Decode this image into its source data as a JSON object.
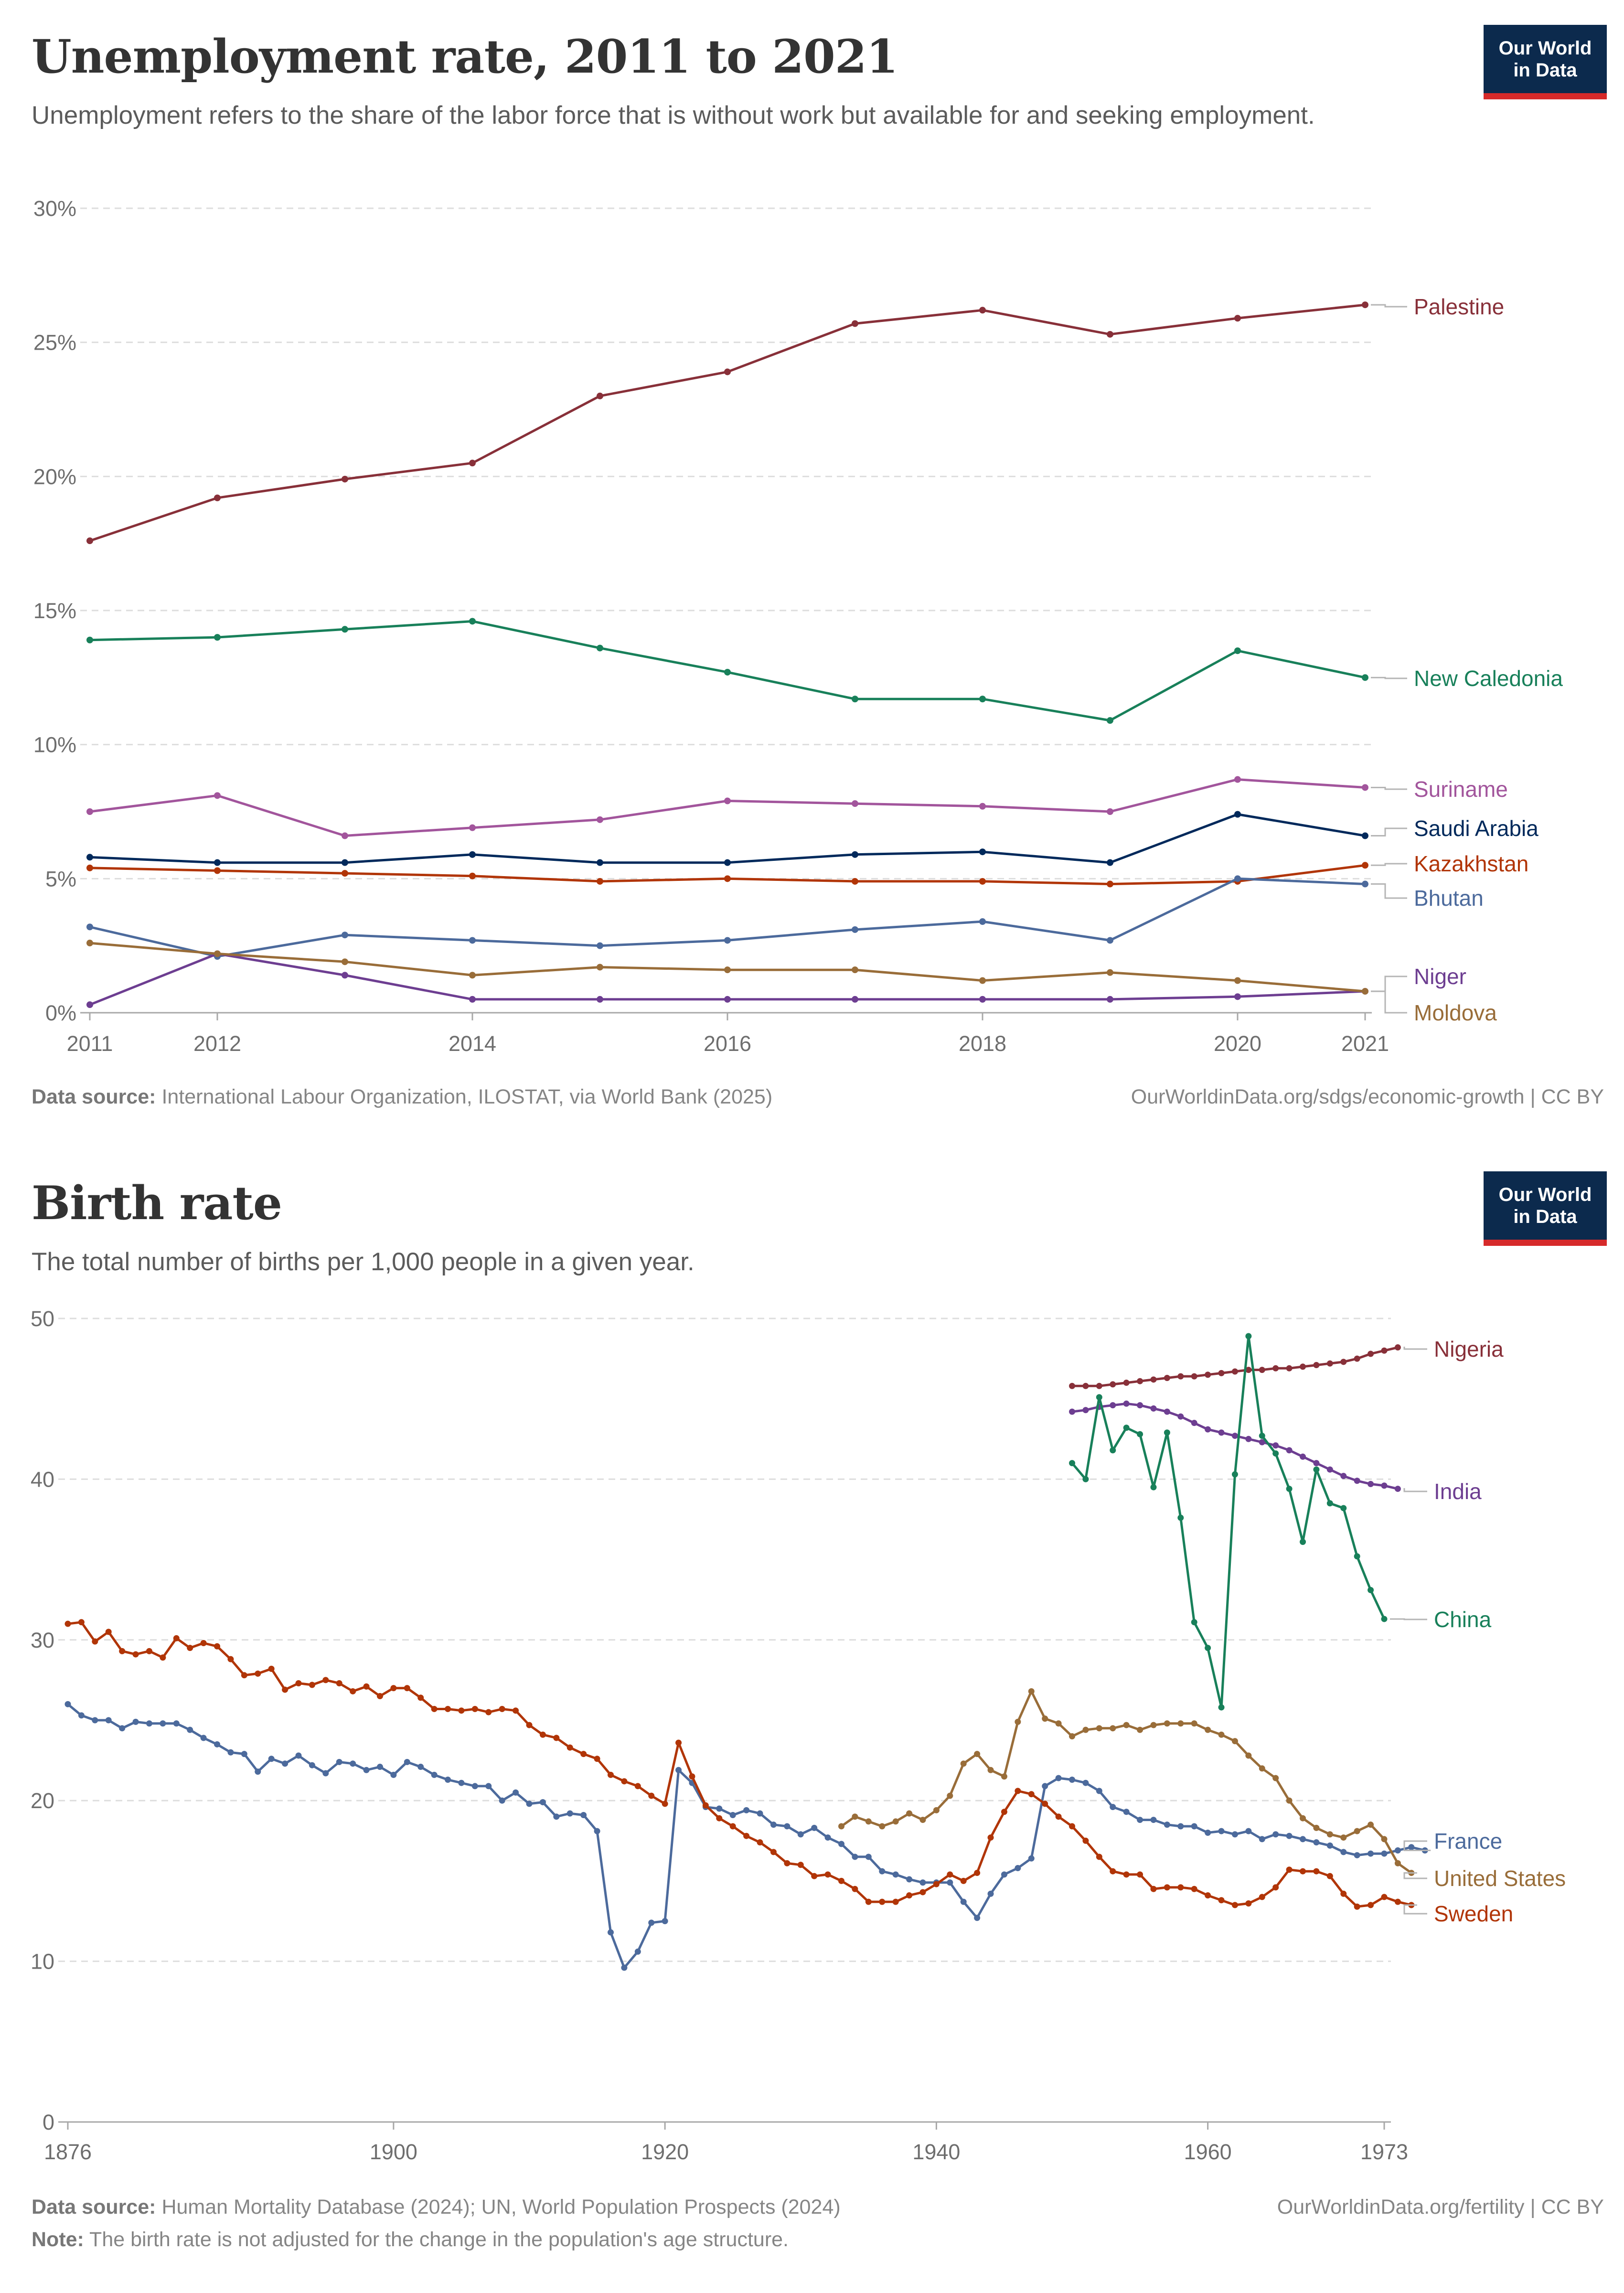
{
  "charts": [
    {
      "title": "Unemployment rate, 2011 to 2021",
      "subtitle": "Unemployment refers to the share of the labor force that is without work but available for and seeking employment.",
      "logo": [
        "Our World",
        "in Data"
      ],
      "source_label": "Data source:",
      "source_text": "International Labour Organization, ILOSTAT, via World Bank (2025)",
      "url": "OurWorldinData.org/sdgs/economic-growth | CC BY"
    },
    {
      "title": "Birth rate",
      "subtitle": "The total number of births per 1,000 people in a given year.",
      "logo": [
        "Our World",
        "in Data"
      ],
      "source_label": "Data source:",
      "source_text": "Human Mortality Database (2024); UN, World Population Prospects (2024)",
      "url": "OurWorldinData.org/fertility | CC BY",
      "note_label": "Note:",
      "note_text": "The birth rate is not adjusted for the change in the population's age structure."
    }
  ],
  "chart_data": [
    {
      "type": "line",
      "title": "Unemployment rate, 2011 to 2021",
      "ylim": [
        0,
        30
      ],
      "yticks": [
        0,
        5,
        10,
        15,
        20,
        25,
        30
      ],
      "ytick_labels": [
        "0%",
        "5%",
        "10%",
        "15%",
        "20%",
        "25%",
        "30%"
      ],
      "xlim": [
        2011,
        2021
      ],
      "xticks": [
        2011,
        2012,
        2014,
        2016,
        2018,
        2020,
        2021
      ],
      "x": [
        2011,
        2012,
        2013,
        2014,
        2015,
        2016,
        2017,
        2018,
        2019,
        2020,
        2021
      ],
      "series": [
        {
          "name": "Palestine",
          "color": "#883039",
          "values": [
            17.6,
            19.2,
            19.9,
            20.5,
            23.0,
            23.9,
            25.7,
            26.2,
            25.3,
            25.9,
            26.4
          ]
        },
        {
          "name": "New Caledonia",
          "color": "#18805a",
          "values": [
            13.9,
            14.0,
            14.3,
            14.6,
            13.6,
            12.7,
            11.7,
            11.7,
            10.9,
            13.5,
            12.5
          ]
        },
        {
          "name": "Suriname",
          "color": "#a2559c",
          "values": [
            7.5,
            8.1,
            6.6,
            6.9,
            7.2,
            7.9,
            7.8,
            7.7,
            7.5,
            8.7,
            8.4
          ]
        },
        {
          "name": "Saudi Arabia",
          "color": "#00295b",
          "values": [
            5.8,
            5.6,
            5.6,
            5.9,
            5.6,
            5.6,
            5.9,
            6.0,
            5.6,
            7.4,
            6.6
          ]
        },
        {
          "name": "Kazakhstan",
          "color": "#b13507",
          "values": [
            5.4,
            5.3,
            5.2,
            5.1,
            4.9,
            5.0,
            4.9,
            4.9,
            4.8,
            4.9,
            5.5
          ]
        },
        {
          "name": "Bhutan",
          "color": "#4c6a9c",
          "values": [
            3.2,
            2.1,
            2.9,
            2.7,
            2.5,
            2.7,
            3.1,
            3.4,
            2.7,
            5.0,
            4.8
          ]
        },
        {
          "name": "Niger",
          "color": "#6d3e91",
          "values": [
            0.3,
            2.2,
            1.4,
            0.5,
            0.5,
            0.5,
            0.5,
            0.5,
            0.5,
            0.6,
            0.8
          ]
        },
        {
          "name": "Moldova",
          "color": "#996d39",
          "values": [
            2.6,
            2.2,
            1.9,
            1.4,
            1.7,
            1.6,
            1.6,
            1.2,
            1.5,
            1.2,
            0.8
          ]
        }
      ]
    },
    {
      "type": "line",
      "title": "Birth rate",
      "ylim": [
        0,
        50
      ],
      "yticks": [
        0,
        10,
        20,
        30,
        40,
        50
      ],
      "ytick_labels": [
        "0",
        "10",
        "20",
        "30",
        "40",
        "50"
      ],
      "xlim": [
        1876,
        1973
      ],
      "xticks": [
        1876,
        1900,
        1920,
        1940,
        1960,
        1973
      ],
      "series": [
        {
          "name": "Nigeria",
          "color": "#883039",
          "x_start": 1950,
          "values": [
            45.8,
            45.8,
            45.8,
            45.9,
            46.0,
            46.1,
            46.2,
            46.3,
            46.4,
            46.4,
            46.5,
            46.6,
            46.7,
            46.8,
            46.8,
            46.9,
            46.9,
            47.0,
            47.1,
            47.2,
            47.3,
            47.5,
            47.8,
            48.0,
            48.2
          ]
        },
        {
          "name": "India",
          "color": "#6d3e91",
          "x_start": 1950,
          "values": [
            44.2,
            44.3,
            44.5,
            44.6,
            44.7,
            44.6,
            44.4,
            44.2,
            43.9,
            43.5,
            43.1,
            42.9,
            42.7,
            42.5,
            42.3,
            42.1,
            41.8,
            41.4,
            41.0,
            40.6,
            40.2,
            39.9,
            39.7,
            39.6,
            39.4
          ]
        },
        {
          "name": "China",
          "color": "#18805a",
          "x_start": 1950,
          "values": [
            41.0,
            40.0,
            45.1,
            41.8,
            43.2,
            42.8,
            39.5,
            42.9,
            37.6,
            31.1,
            29.5,
            25.8,
            40.3,
            48.9,
            42.7,
            41.6,
            39.4,
            36.1,
            40.6,
            38.5,
            38.2,
            35.2,
            33.1,
            31.3
          ]
        },
        {
          "name": "France",
          "color": "#4c6a9c",
          "x_start": 1876,
          "values": [
            26.0,
            25.3,
            25.0,
            25.0,
            24.5,
            24.9,
            24.8,
            24.8,
            24.8,
            24.4,
            23.9,
            23.5,
            23.0,
            22.9,
            21.8,
            22.6,
            22.3,
            22.8,
            22.2,
            21.7,
            22.4,
            22.3,
            21.9,
            22.1,
            21.6,
            22.4,
            22.1,
            21.6,
            21.3,
            21.1,
            20.9,
            20.9,
            20.0,
            20.5,
            19.8,
            19.9,
            19.0,
            19.2,
            19.1,
            18.1,
            11.8,
            9.6,
            10.6,
            12.4,
            12.5,
            21.9,
            21.1,
            19.6,
            19.5,
            19.1,
            19.4,
            19.2,
            18.5,
            18.4,
            17.9,
            18.3,
            17.7,
            17.3,
            16.5,
            16.5,
            15.6,
            15.4,
            15.1,
            14.9,
            14.9,
            14.9,
            13.7,
            12.7,
            14.2,
            15.4,
            15.8,
            16.4,
            20.9,
            21.4,
            21.3,
            21.1,
            20.6,
            19.6,
            19.3,
            18.8,
            18.8,
            18.5,
            18.4,
            18.4,
            18.0,
            18.1,
            17.9,
            18.1,
            17.6,
            17.9,
            17.8,
            17.6,
            17.4,
            17.2,
            16.8,
            16.6,
            16.7,
            16.7,
            16.9,
            17.1,
            16.9
          ]
        },
        {
          "name": "United States",
          "color": "#996d39",
          "x_start": 1933,
          "values": [
            18.4,
            19.0,
            18.7,
            18.4,
            18.7,
            19.2,
            18.8,
            19.4,
            20.3,
            22.3,
            22.9,
            21.9,
            21.5,
            24.9,
            26.8,
            25.1,
            24.8,
            24.0,
            24.4,
            24.5,
            24.5,
            24.7,
            24.4,
            24.7,
            24.8,
            24.8,
            24.8,
            24.4,
            24.1,
            23.7,
            22.8,
            22.0,
            21.4,
            20.0,
            18.9,
            18.3,
            17.9,
            17.7,
            18.1,
            18.5,
            17.6,
            16.1,
            15.5
          ]
        },
        {
          "name": "Sweden",
          "color": "#b13507",
          "x_start": 1876,
          "values": [
            31.0,
            31.1,
            29.9,
            30.5,
            29.3,
            29.1,
            29.3,
            28.9,
            30.1,
            29.5,
            29.8,
            29.6,
            28.8,
            27.8,
            27.9,
            28.2,
            26.9,
            27.3,
            27.2,
            27.5,
            27.3,
            26.8,
            27.1,
            26.5,
            27.0,
            27.0,
            26.4,
            25.7,
            25.7,
            25.6,
            25.7,
            25.5,
            25.7,
            25.6,
            24.7,
            24.1,
            23.9,
            23.3,
            22.9,
            22.6,
            21.6,
            21.2,
            20.9,
            20.3,
            19.8,
            23.6,
            21.5,
            19.7,
            18.9,
            18.4,
            17.8,
            17.4,
            16.8,
            16.1,
            16.0,
            15.3,
            15.4,
            15.0,
            14.5,
            13.7,
            13.7,
            13.7,
            14.1,
            14.3,
            14.8,
            15.4,
            15.0,
            15.5,
            17.7,
            19.3,
            20.6,
            20.4,
            19.8,
            19.0,
            18.4,
            17.5,
            16.5,
            15.6,
            15.4,
            15.4,
            14.5,
            14.6,
            14.6,
            14.5,
            14.1,
            13.8,
            13.5,
            13.6,
            14.0,
            14.6,
            15.7,
            15.6,
            15.6,
            15.3,
            14.2,
            13.4,
            13.5,
            14.0,
            13.7,
            13.5
          ]
        }
      ]
    }
  ]
}
